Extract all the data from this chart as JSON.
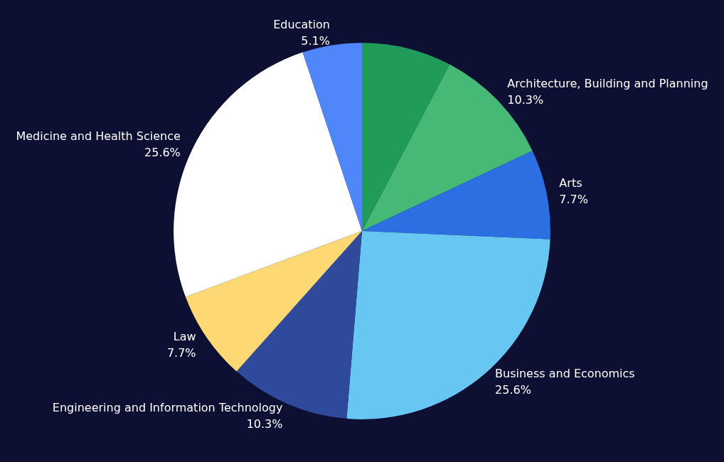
{
  "chart_data": {
    "type": "pie",
    "categories": [
      null,
      "Architecture, Building and Planning",
      "Arts",
      "Business and Economics",
      "Engineering and Information Technology",
      "Law",
      "Medicine and Health Science",
      "Education"
    ],
    "values": [
      7.7,
      10.3,
      7.7,
      25.6,
      10.3,
      7.7,
      25.6,
      5.1
    ],
    "value_labels": [
      null,
      "10.3%",
      "7.7%",
      "25.6%",
      "10.3%",
      "7.7%",
      "25.6%",
      "5.1%"
    ],
    "colors": [
      "#219b5a",
      "#46b977",
      "#2b6fe3",
      "#68c7f2",
      "#2f4a9a",
      "#fed872",
      "#ffffff",
      "#4f87fa"
    ],
    "legend": false
  }
}
